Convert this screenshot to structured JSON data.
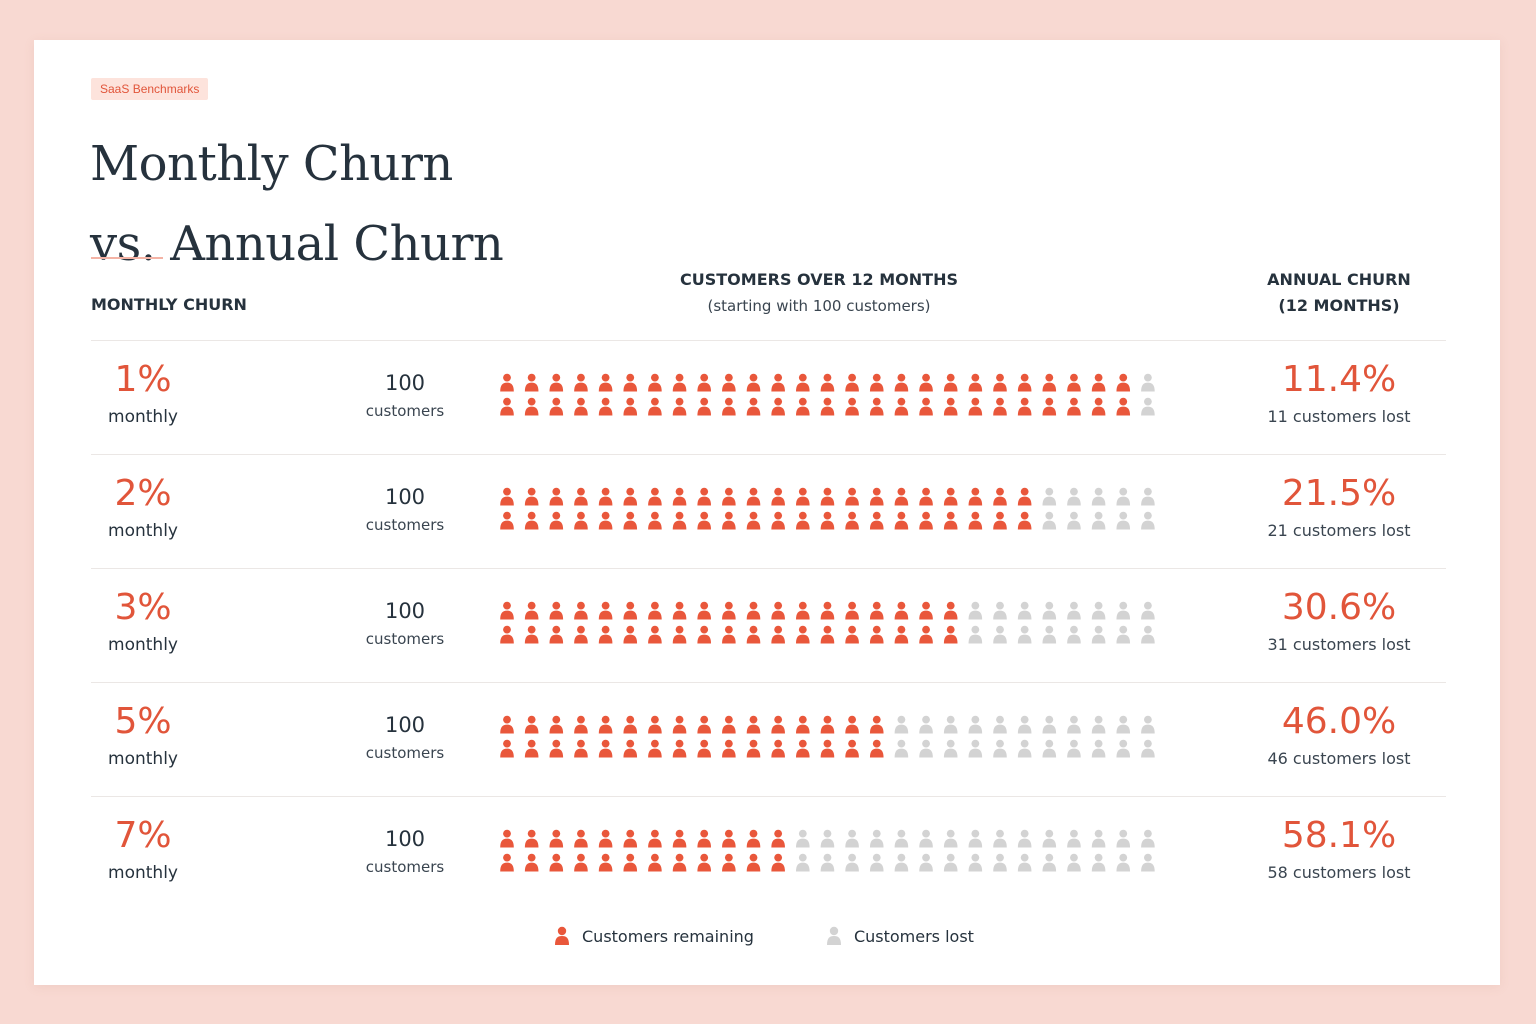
{
  "badge": "SaaS Benchmarks",
  "title_lines": [
    "Monthly Churn",
    "vs. Annual Churn"
  ],
  "headers": {
    "monthly": "MONTHLY CHURN",
    "center": "CUSTOMERS OVER 12 MONTHS",
    "center_sub": "(starting with 100 customers)",
    "annual_line1": "ANNUAL CHURN",
    "annual_line2": "(12 MONTHS)"
  },
  "colors": {
    "remaining": "#e9573b",
    "lost": "#d3d3d3",
    "accent": "#e1553a"
  },
  "icons": {
    "remaining": "person-icon",
    "lost": "person-icon"
  },
  "legend": {
    "remaining": "Customers remaining",
    "lost": "Customers lost"
  },
  "chart_data": {
    "type": "pictogram",
    "icons_per_row": 28,
    "rows_of_icons_per_bar": 2,
    "series": [
      {
        "monthly_pct": "1%",
        "monthly_label": "monthly",
        "start_value": "100",
        "start_label": "customers",
        "remaining_icons": 26,
        "annual_pct": "11.4%",
        "annual_label": "11 customers lost"
      },
      {
        "monthly_pct": "2%",
        "monthly_label": "monthly",
        "start_value": "100",
        "start_label": "customers",
        "remaining_icons": 22,
        "annual_pct": "21.5%",
        "annual_label": "21 customers lost"
      },
      {
        "monthly_pct": "3%",
        "monthly_label": "monthly",
        "start_value": "100",
        "start_label": "customers",
        "remaining_icons": 19,
        "annual_pct": "30.6%",
        "annual_label": "31 customers lost"
      },
      {
        "monthly_pct": "5%",
        "monthly_label": "monthly",
        "start_value": "100",
        "start_label": "customers",
        "remaining_icons": 16,
        "annual_pct": "46.0%",
        "annual_label": "46 customers lost"
      },
      {
        "monthly_pct": "7%",
        "monthly_label": "monthly",
        "start_value": "100",
        "start_label": "customers",
        "remaining_icons": 12,
        "annual_pct": "58.1%",
        "annual_label": "58 customers lost"
      }
    ]
  }
}
